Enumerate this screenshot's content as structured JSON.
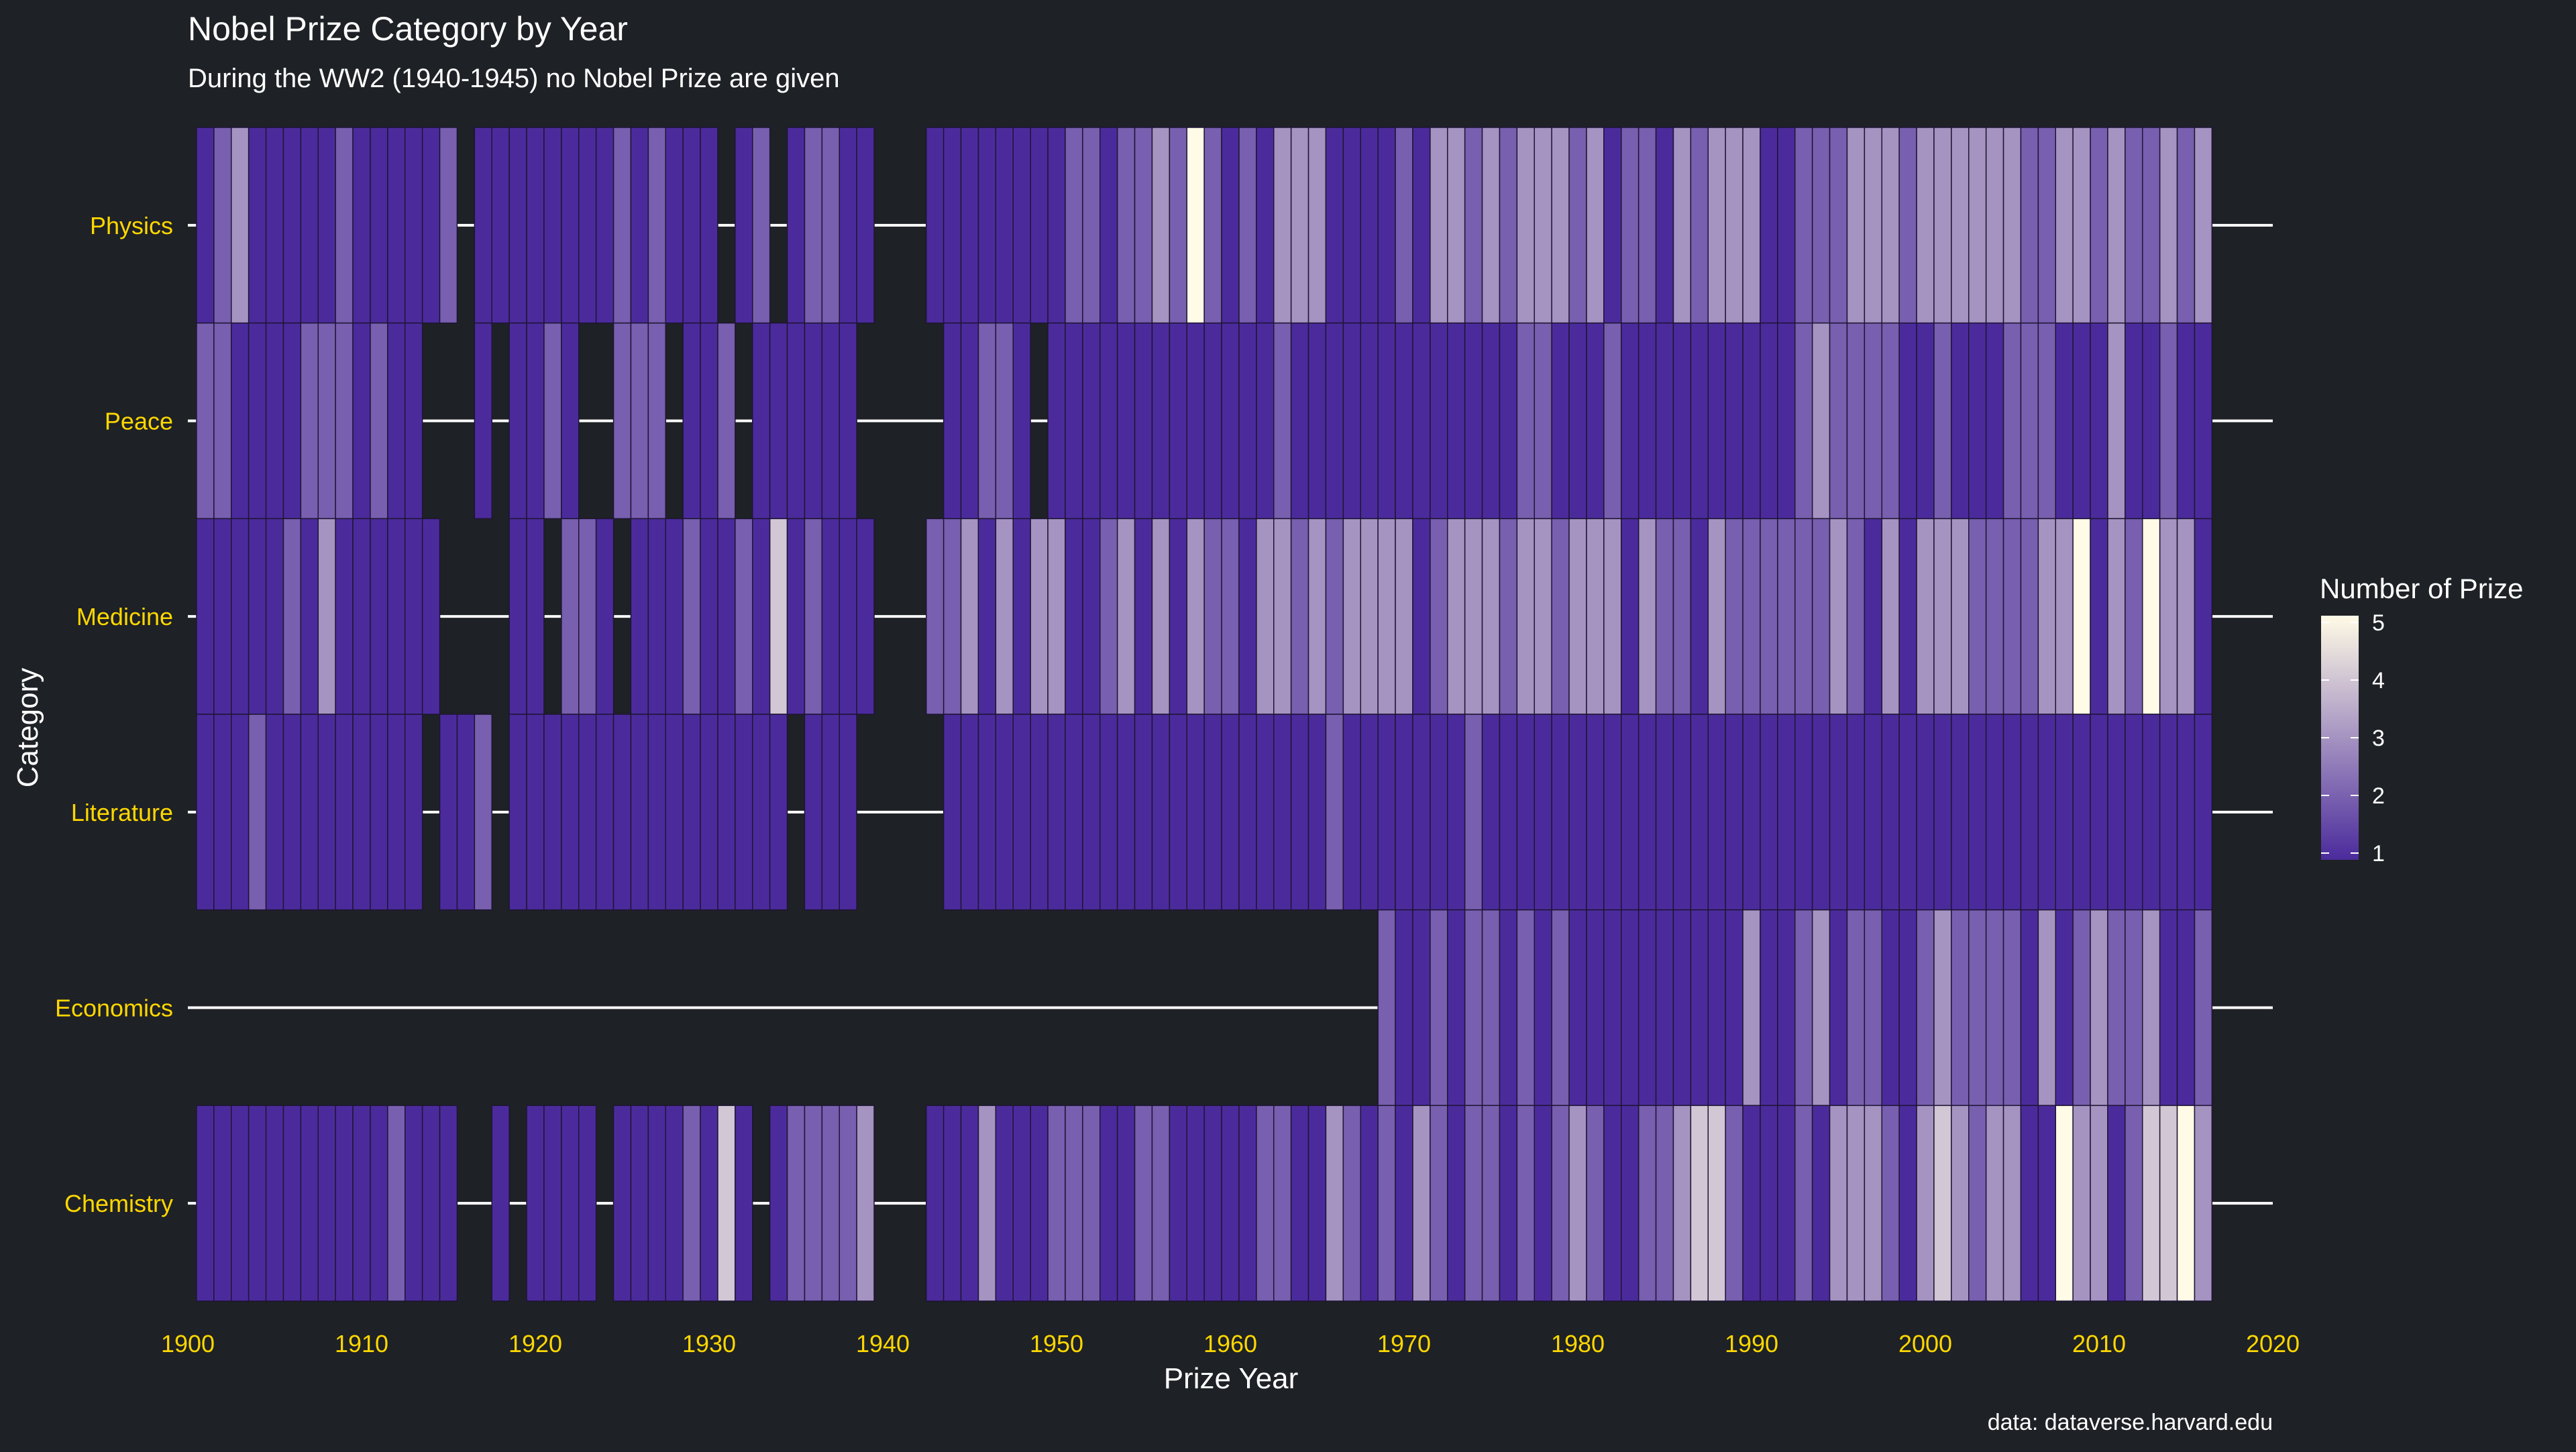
{
  "chart_data": {
    "type": "heatmap",
    "title": "Nobel Prize Category by Year",
    "subtitle": "During the WW2 (1940-1945) no Nobel Prize are given",
    "caption": "data: dataverse.harvard.edu",
    "xlabel": "Prize Year",
    "ylabel": "Category",
    "xlim": [
      1900,
      2020
    ],
    "x_ticks": [
      1900,
      1910,
      1920,
      1930,
      1940,
      1950,
      1960,
      1970,
      1980,
      1990,
      2000,
      2010,
      2020
    ],
    "categories": [
      "Physics",
      "Peace",
      "Medicine",
      "Literature",
      "Economics",
      "Chemistry"
    ],
    "legend": {
      "title": "Number of Prize",
      "position": "right",
      "ticks": [
        1,
        2,
        3,
        4,
        5
      ],
      "min": 1,
      "max": 5
    },
    "colors": {
      "background": "#1e2125",
      "text": "#ffffff",
      "tick_label": "#ffd700",
      "gridline": "#ffffff",
      "tile_border": "#1e1534",
      "scale_low": "#4b2b9c",
      "scale_high": "#fffbe6"
    },
    "series": [
      {
        "name": "Physics",
        "values": {
          "1901": 1,
          "1902": 2,
          "1903": 3,
          "1904": 1,
          "1905": 1,
          "1906": 1,
          "1907": 1,
          "1908": 1,
          "1909": 2,
          "1910": 1,
          "1911": 1,
          "1912": 1,
          "1913": 1,
          "1914": 1,
          "1915": 2,
          "1917": 1,
          "1918": 1,
          "1919": 1,
          "1920": 1,
          "1921": 1,
          "1922": 1,
          "1923": 1,
          "1924": 1,
          "1925": 2,
          "1926": 1,
          "1927": 2,
          "1928": 1,
          "1929": 1,
          "1930": 1,
          "1932": 1,
          "1933": 2,
          "1935": 1,
          "1936": 2,
          "1937": 2,
          "1938": 1,
          "1939": 1,
          "1943": 1,
          "1944": 1,
          "1945": 1,
          "1946": 1,
          "1947": 1,
          "1948": 1,
          "1949": 1,
          "1950": 1,
          "1951": 2,
          "1952": 2,
          "1953": 1,
          "1954": 2,
          "1955": 2,
          "1956": 3,
          "1957": 2,
          "1958": 5,
          "1959": 2,
          "1960": 1,
          "1961": 2,
          "1962": 1,
          "1963": 3,
          "1964": 3,
          "1965": 3,
          "1966": 1,
          "1967": 1,
          "1968": 1,
          "1969": 1,
          "1970": 2,
          "1971": 1,
          "1972": 3,
          "1973": 3,
          "1974": 2,
          "1975": 3,
          "1976": 2,
          "1977": 3,
          "1978": 3,
          "1979": 3,
          "1980": 2,
          "1981": 3,
          "1982": 1,
          "1983": 2,
          "1984": 2,
          "1985": 1,
          "1986": 3,
          "1987": 2,
          "1988": 3,
          "1989": 3,
          "1990": 3,
          "1991": 1,
          "1992": 1,
          "1993": 2,
          "1994": 2,
          "1995": 2,
          "1996": 3,
          "1997": 3,
          "1998": 3,
          "1999": 2,
          "2000": 3,
          "2001": 3,
          "2002": 3,
          "2003": 3,
          "2004": 3,
          "2005": 3,
          "2006": 2,
          "2007": 2,
          "2008": 3,
          "2009": 3,
          "2010": 2,
          "2011": 3,
          "2012": 2,
          "2013": 2,
          "2014": 3,
          "2015": 2,
          "2016": 3
        }
      },
      {
        "name": "Peace",
        "values": {
          "1901": 2,
          "1902": 2,
          "1903": 1,
          "1904": 1,
          "1905": 1,
          "1906": 1,
          "1907": 2,
          "1908": 2,
          "1909": 2,
          "1910": 1,
          "1911": 2,
          "1912": 1,
          "1913": 1,
          "1917": 1,
          "1919": 1,
          "1920": 1,
          "1921": 2,
          "1922": 1,
          "1925": 2,
          "1926": 2,
          "1927": 2,
          "1929": 1,
          "1930": 1,
          "1931": 2,
          "1933": 1,
          "1934": 1,
          "1935": 1,
          "1936": 1,
          "1937": 1,
          "1938": 1,
          "1944": 1,
          "1945": 1,
          "1946": 2,
          "1947": 2,
          "1948": 1,
          "1950": 1,
          "1951": 1,
          "1952": 1,
          "1953": 1,
          "1954": 1,
          "1955": 1,
          "1956": 1,
          "1957": 1,
          "1958": 1,
          "1959": 1,
          "1960": 1,
          "1961": 1,
          "1962": 1,
          "1963": 2,
          "1964": 1,
          "1965": 1,
          "1966": 1,
          "1967": 1,
          "1968": 1,
          "1969": 1,
          "1970": 1,
          "1971": 1,
          "1972": 1,
          "1973": 1,
          "1974": 1,
          "1975": 1,
          "1976": 1,
          "1977": 2,
          "1978": 2,
          "1979": 1,
          "1980": 1,
          "1981": 1,
          "1982": 2,
          "1983": 1,
          "1984": 1,
          "1985": 1,
          "1986": 1,
          "1987": 1,
          "1988": 1,
          "1989": 1,
          "1990": 1,
          "1991": 1,
          "1992": 1,
          "1993": 2,
          "1994": 3,
          "1995": 2,
          "1996": 2,
          "1997": 2,
          "1998": 2,
          "1999": 1,
          "2000": 1,
          "2001": 2,
          "2002": 1,
          "2003": 1,
          "2004": 1,
          "2005": 2,
          "2006": 2,
          "2007": 2,
          "2008": 1,
          "2009": 1,
          "2010": 1,
          "2011": 3,
          "2012": 1,
          "2013": 1,
          "2014": 2,
          "2015": 1,
          "2016": 1
        }
      },
      {
        "name": "Medicine",
        "values": {
          "1901": 1,
          "1902": 1,
          "1903": 1,
          "1904": 1,
          "1905": 1,
          "1906": 2,
          "1907": 1,
          "1908": 3,
          "1909": 1,
          "1910": 1,
          "1911": 1,
          "1912": 1,
          "1913": 1,
          "1914": 1,
          "1919": 1,
          "1920": 1,
          "1922": 2,
          "1923": 2,
          "1924": 1,
          "1926": 1,
          "1927": 1,
          "1928": 1,
          "1929": 2,
          "1930": 1,
          "1931": 1,
          "1932": 2,
          "1933": 1,
          "1934": 4,
          "1935": 1,
          "1936": 2,
          "1937": 1,
          "1938": 1,
          "1939": 1,
          "1943": 2,
          "1944": 2,
          "1945": 3,
          "1946": 1,
          "1947": 3,
          "1948": 1,
          "1949": 3,
          "1950": 3,
          "1951": 1,
          "1952": 1,
          "1953": 2,
          "1954": 3,
          "1955": 1,
          "1956": 3,
          "1957": 1,
          "1958": 3,
          "1959": 2,
          "1960": 2,
          "1961": 1,
          "1962": 3,
          "1963": 3,
          "1964": 2,
          "1965": 3,
          "1966": 2,
          "1967": 3,
          "1968": 3,
          "1969": 3,
          "1970": 3,
          "1971": 1,
          "1972": 2,
          "1973": 3,
          "1974": 3,
          "1975": 3,
          "1976": 2,
          "1977": 3,
          "1978": 3,
          "1979": 2,
          "1980": 3,
          "1981": 3,
          "1982": 3,
          "1983": 1,
          "1984": 3,
          "1985": 2,
          "1986": 2,
          "1987": 1,
          "1988": 3,
          "1989": 2,
          "1990": 2,
          "1991": 2,
          "1992": 2,
          "1993": 2,
          "1994": 2,
          "1995": 3,
          "1996": 2,
          "1997": 1,
          "1998": 3,
          "1999": 1,
          "2000": 3,
          "2001": 3,
          "2002": 3,
          "2003": 2,
          "2004": 2,
          "2005": 2,
          "2006": 2,
          "2007": 3,
          "2008": 3,
          "2009": 5,
          "2010": 1,
          "2011": 3,
          "2012": 2,
          "2013": 5,
          "2014": 3,
          "2015": 3,
          "2016": 1
        }
      },
      {
        "name": "Literature",
        "values": {
          "1901": 1,
          "1902": 1,
          "1903": 1,
          "1904": 2,
          "1905": 1,
          "1906": 1,
          "1907": 1,
          "1908": 1,
          "1909": 1,
          "1910": 1,
          "1911": 1,
          "1912": 1,
          "1913": 1,
          "1915": 1,
          "1916": 1,
          "1917": 2,
          "1919": 1,
          "1920": 1,
          "1921": 1,
          "1922": 1,
          "1923": 1,
          "1924": 1,
          "1925": 1,
          "1926": 1,
          "1927": 1,
          "1928": 1,
          "1929": 1,
          "1930": 1,
          "1931": 1,
          "1932": 1,
          "1933": 1,
          "1934": 1,
          "1936": 1,
          "1937": 1,
          "1938": 1,
          "1944": 1,
          "1945": 1,
          "1946": 1,
          "1947": 1,
          "1948": 1,
          "1949": 1,
          "1950": 1,
          "1951": 1,
          "1952": 1,
          "1953": 1,
          "1954": 1,
          "1955": 1,
          "1956": 1,
          "1957": 1,
          "1958": 1,
          "1959": 1,
          "1960": 1,
          "1961": 1,
          "1962": 1,
          "1963": 1,
          "1964": 1,
          "1965": 1,
          "1966": 2,
          "1967": 1,
          "1968": 1,
          "1969": 1,
          "1970": 1,
          "1971": 1,
          "1972": 1,
          "1973": 1,
          "1974": 2,
          "1975": 1,
          "1976": 1,
          "1977": 1,
          "1978": 1,
          "1979": 1,
          "1980": 1,
          "1981": 1,
          "1982": 1,
          "1983": 1,
          "1984": 1,
          "1985": 1,
          "1986": 1,
          "1987": 1,
          "1988": 1,
          "1989": 1,
          "1990": 1,
          "1991": 1,
          "1992": 1,
          "1993": 1,
          "1994": 1,
          "1995": 1,
          "1996": 1,
          "1997": 1,
          "1998": 1,
          "1999": 1,
          "2000": 1,
          "2001": 1,
          "2002": 1,
          "2003": 1,
          "2004": 1,
          "2005": 1,
          "2006": 1,
          "2007": 1,
          "2008": 1,
          "2009": 1,
          "2010": 1,
          "2011": 1,
          "2012": 1,
          "2013": 1,
          "2014": 1,
          "2015": 1,
          "2016": 1
        }
      },
      {
        "name": "Economics",
        "values": {
          "1969": 2,
          "1970": 1,
          "1971": 1,
          "1972": 2,
          "1973": 1,
          "1974": 2,
          "1975": 2,
          "1976": 1,
          "1977": 2,
          "1978": 1,
          "1979": 2,
          "1980": 1,
          "1981": 1,
          "1982": 1,
          "1983": 1,
          "1984": 1,
          "1985": 1,
          "1986": 1,
          "1987": 1,
          "1988": 1,
          "1989": 1,
          "1990": 3,
          "1991": 1,
          "1992": 1,
          "1993": 2,
          "1994": 3,
          "1995": 1,
          "1996": 2,
          "1997": 2,
          "1998": 1,
          "1999": 1,
          "2000": 2,
          "2001": 3,
          "2002": 2,
          "2003": 2,
          "2004": 2,
          "2005": 2,
          "2006": 1,
          "2007": 3,
          "2008": 1,
          "2009": 2,
          "2010": 3,
          "2011": 2,
          "2012": 2,
          "2013": 3,
          "2014": 1,
          "2015": 1,
          "2016": 2
        }
      },
      {
        "name": "Chemistry",
        "values": {
          "1901": 1,
          "1902": 1,
          "1903": 1,
          "1904": 1,
          "1905": 1,
          "1906": 1,
          "1907": 1,
          "1908": 1,
          "1909": 1,
          "1910": 1,
          "1911": 1,
          "1912": 2,
          "1913": 1,
          "1914": 1,
          "1915": 1,
          "1918": 1,
          "1920": 1,
          "1921": 1,
          "1922": 1,
          "1923": 1,
          "1925": 1,
          "1926": 1,
          "1927": 1,
          "1928": 1,
          "1929": 2,
          "1930": 1,
          "1931": 4,
          "1932": 1,
          "1934": 1,
          "1935": 2,
          "1936": 2,
          "1937": 2,
          "1938": 2,
          "1939": 3,
          "1943": 1,
          "1944": 1,
          "1945": 1,
          "1946": 3,
          "1947": 1,
          "1948": 1,
          "1949": 1,
          "1950": 2,
          "1951": 2,
          "1952": 2,
          "1953": 1,
          "1954": 1,
          "1955": 2,
          "1956": 2,
          "1957": 1,
          "1958": 1,
          "1959": 1,
          "1960": 1,
          "1961": 1,
          "1962": 2,
          "1963": 2,
          "1964": 1,
          "1965": 1,
          "1966": 3,
          "1967": 2,
          "1968": 1,
          "1969": 2,
          "1970": 1,
          "1971": 3,
          "1972": 2,
          "1973": 1,
          "1974": 2,
          "1975": 2,
          "1976": 1,
          "1977": 2,
          "1978": 1,
          "1979": 2,
          "1980": 3,
          "1981": 2,
          "1982": 1,
          "1983": 1,
          "1984": 2,
          "1985": 2,
          "1986": 3,
          "1987": 4,
          "1988": 4,
          "1989": 2,
          "1990": 1,
          "1991": 1,
          "1992": 1,
          "1993": 2,
          "1994": 1,
          "1995": 3,
          "1996": 3,
          "1997": 3,
          "1998": 2,
          "1999": 1,
          "2000": 3,
          "2001": 4,
          "2002": 3,
          "2003": 2,
          "2004": 3,
          "2005": 3,
          "2006": 1,
          "2007": 1,
          "2008": 5,
          "2009": 3,
          "2010": 3,
          "2011": 1,
          "2012": 2,
          "2013": 4,
          "2014": 4,
          "2015": 5,
          "2016": 3
        }
      }
    ]
  }
}
